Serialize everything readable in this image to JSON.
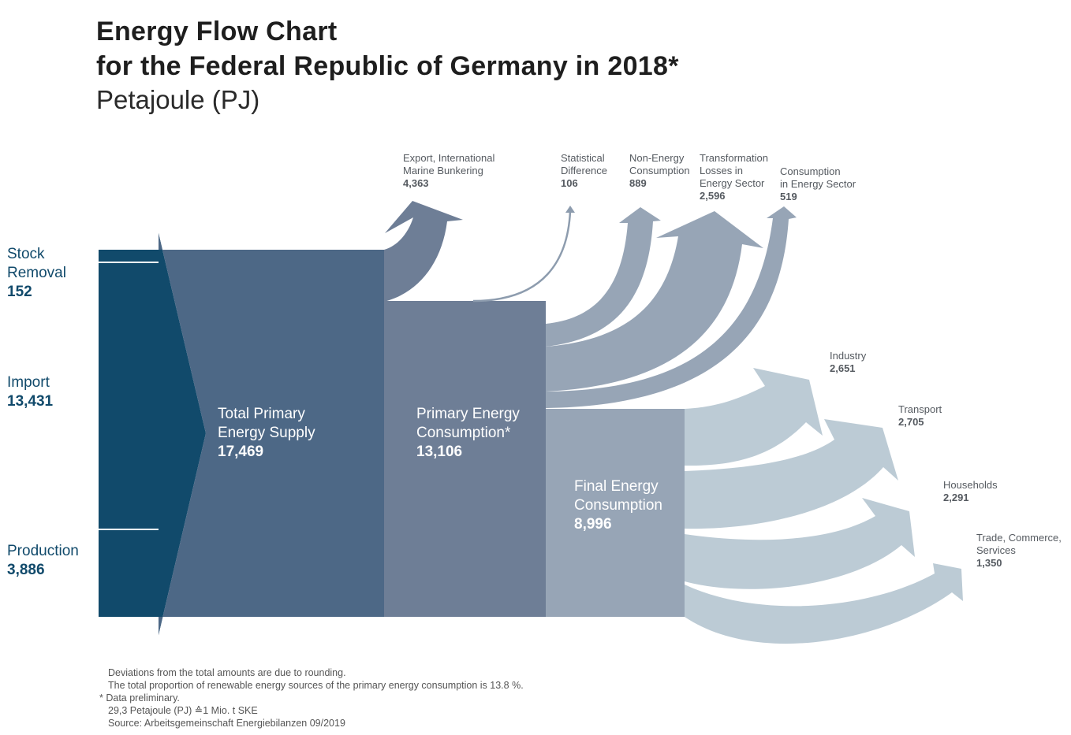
{
  "title": {
    "line1": "Energy Flow Chart",
    "line2": "for the Federal Republic of Germany in 2018*",
    "unit": "Petajoule (PJ)"
  },
  "colors": {
    "input": "#114a6b",
    "primary_supply": "#4d6886",
    "primary_consumption": "#6e7e96",
    "losses": "#97a5b6",
    "final": "#97a5b6",
    "final_outputs": "#bccbd5"
  },
  "inputs": [
    {
      "label": "Stock\nRemoval",
      "value": "152"
    },
    {
      "label": "Import",
      "value": "13,431"
    },
    {
      "label": "Production",
      "value": "3,886"
    }
  ],
  "nodes": {
    "primary_supply": {
      "label": "Total Primary\nEnergy Supply",
      "value": "17,469"
    },
    "primary_consumption": {
      "label": "Primary Energy\nConsumption*",
      "value": "13,106"
    },
    "final_consumption": {
      "label": "Final Energy\nConsumption",
      "value": "8,996"
    }
  },
  "outputs_top": [
    {
      "label": "Export, International\nMarine Bunkering",
      "value": "4,363"
    },
    {
      "label": "Statistical\nDifference",
      "value": "106"
    },
    {
      "label": "Non-Energy\nConsumption",
      "value": "889"
    },
    {
      "label": "Transformation\nLosses in\nEnergy Sector",
      "value": "2,596"
    },
    {
      "label": "Consumption\nin Energy Sector",
      "value": "519"
    }
  ],
  "outputs_final": [
    {
      "label": "Industry",
      "value": "2,651"
    },
    {
      "label": "Transport",
      "value": "2,705"
    },
    {
      "label": "Households",
      "value": "2,291"
    },
    {
      "label": "Trade, Commerce,\nServices",
      "value": "1,350"
    }
  ],
  "notes": [
    "Deviations from the total amounts are due to rounding.",
    "The total proportion of renewable energy sources of the primary energy consumption is 13.8 %.",
    "* Data preliminary.",
    "29,3 Petajoule (PJ) ≙1 Mio. t SKE",
    "Source: Arbeitsgemeinschaft Energiebilanzen 09/2019"
  ]
}
